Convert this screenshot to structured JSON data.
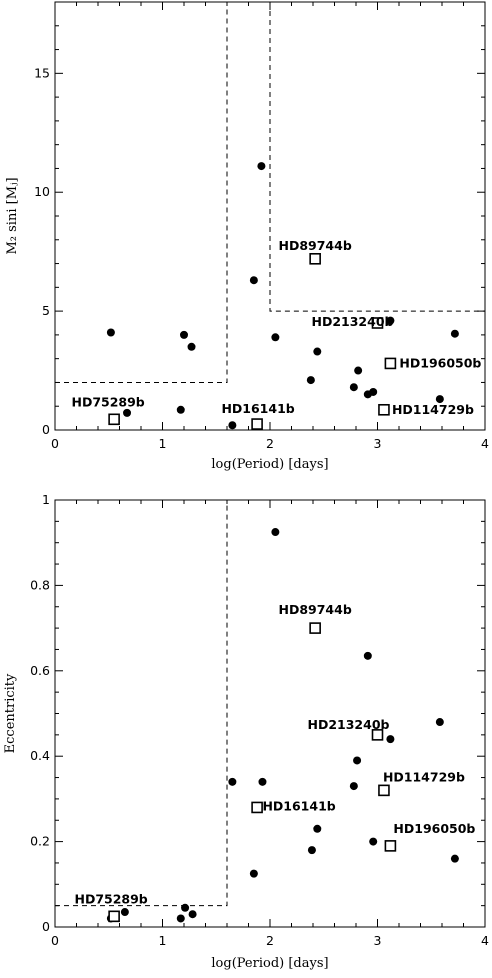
{
  "chart_data": [
    {
      "type": "scatter",
      "xlabel": "log(Period)  [days]",
      "ylabel": "M₂ sini  [Mⱼ]",
      "xlim": [
        0,
        4
      ],
      "ylim": [
        0,
        18
      ],
      "xticks": [
        0,
        1,
        2,
        3,
        4
      ],
      "xtick_labels": [
        "0",
        "1",
        "2",
        "3",
        "4"
      ],
      "yticks": [
        0,
        5,
        10,
        15
      ],
      "ytick_labels": [
        "0",
        "5",
        "10",
        "15"
      ],
      "grid": false,
      "boundary_lines": [
        {
          "style": "dashed",
          "points": [
            [
              0,
              2
            ],
            [
              1.6,
              2
            ],
            [
              1.6,
              18
            ]
          ]
        },
        {
          "style": "dashed",
          "points": [
            [
              2.0,
              18
            ],
            [
              2.0,
              5
            ],
            [
              4.0,
              5
            ]
          ]
        }
      ],
      "series": [
        {
          "marker": "filled-circle",
          "points": [
            {
              "x": 0.52,
              "y": 4.1
            },
            {
              "x": 0.67,
              "y": 0.72
            },
            {
              "x": 1.17,
              "y": 0.85
            },
            {
              "x": 1.2,
              "y": 4.0
            },
            {
              "x": 1.27,
              "y": 3.5
            },
            {
              "x": 1.65,
              "y": 0.2
            },
            {
              "x": 1.85,
              "y": 6.3
            },
            {
              "x": 1.92,
              "y": 11.1
            },
            {
              "x": 2.05,
              "y": 3.9
            },
            {
              "x": 2.38,
              "y": 2.1
            },
            {
              "x": 2.44,
              "y": 3.3
            },
            {
              "x": 2.78,
              "y": 1.8
            },
            {
              "x": 2.82,
              "y": 2.5
            },
            {
              "x": 2.91,
              "y": 1.5
            },
            {
              "x": 2.96,
              "y": 1.6
            },
            {
              "x": 3.12,
              "y": 4.6
            },
            {
              "x": 3.58,
              "y": 1.3
            },
            {
              "x": 3.72,
              "y": 4.05
            }
          ]
        },
        {
          "marker": "open-square",
          "points": [
            {
              "x": 2.42,
              "y": 7.2,
              "label": "HD89744b"
            },
            {
              "x": 3.0,
              "y": 4.5,
              "label": "HD213240b"
            },
            {
              "x": 3.12,
              "y": 2.8,
              "label": "HD196050b"
            },
            {
              "x": 3.06,
              "y": 0.85,
              "label": "HD114729b"
            },
            {
              "x": 1.88,
              "y": 0.25,
              "label": "HD16141b"
            },
            {
              "x": 0.55,
              "y": 0.45,
              "label": "HD75289b"
            }
          ]
        }
      ]
    },
    {
      "type": "scatter",
      "xlabel": "log(Period)  [days]",
      "ylabel": "Eccentricity",
      "xlim": [
        0,
        4
      ],
      "ylim": [
        0,
        1
      ],
      "xticks": [
        0,
        1,
        2,
        3,
        4
      ],
      "xtick_labels": [
        "0",
        "1",
        "2",
        "3",
        "4"
      ],
      "yticks": [
        0,
        0.2,
        0.4,
        0.6,
        0.8,
        1
      ],
      "ytick_labels": [
        "0",
        "0.2",
        "0.4",
        "0.6",
        "0.8",
        "1"
      ],
      "grid": false,
      "boundary_lines": [
        {
          "style": "dashed",
          "points": [
            [
              0,
              0.05
            ],
            [
              1.6,
              0.05
            ],
            [
              1.6,
              1.0
            ]
          ]
        }
      ],
      "series": [
        {
          "marker": "filled-circle",
          "points": [
            {
              "x": 0.52,
              "y": 0.02
            },
            {
              "x": 0.65,
              "y": 0.035
            },
            {
              "x": 1.17,
              "y": 0.02
            },
            {
              "x": 1.21,
              "y": 0.045
            },
            {
              "x": 1.28,
              "y": 0.03
            },
            {
              "x": 1.65,
              "y": 0.34
            },
            {
              "x": 1.85,
              "y": 0.125
            },
            {
              "x": 1.93,
              "y": 0.34
            },
            {
              "x": 2.05,
              "y": 0.925
            },
            {
              "x": 2.39,
              "y": 0.18
            },
            {
              "x": 2.44,
              "y": 0.23
            },
            {
              "x": 2.78,
              "y": 0.33
            },
            {
              "x": 2.81,
              "y": 0.39
            },
            {
              "x": 2.91,
              "y": 0.635
            },
            {
              "x": 2.96,
              "y": 0.2
            },
            {
              "x": 3.12,
              "y": 0.44
            },
            {
              "x": 3.58,
              "y": 0.48
            },
            {
              "x": 3.72,
              "y": 0.16
            }
          ]
        },
        {
          "marker": "open-square",
          "points": [
            {
              "x": 2.42,
              "y": 0.7,
              "label": "HD89744b"
            },
            {
              "x": 3.0,
              "y": 0.45,
              "label": "HD213240b"
            },
            {
              "x": 3.06,
              "y": 0.32,
              "label": "HD114729b"
            },
            {
              "x": 1.88,
              "y": 0.28,
              "label": "HD16141b"
            },
            {
              "x": 3.12,
              "y": 0.19,
              "label": "HD196050b"
            },
            {
              "x": 0.55,
              "y": 0.025,
              "label": "HD75289b"
            }
          ]
        }
      ]
    }
  ]
}
